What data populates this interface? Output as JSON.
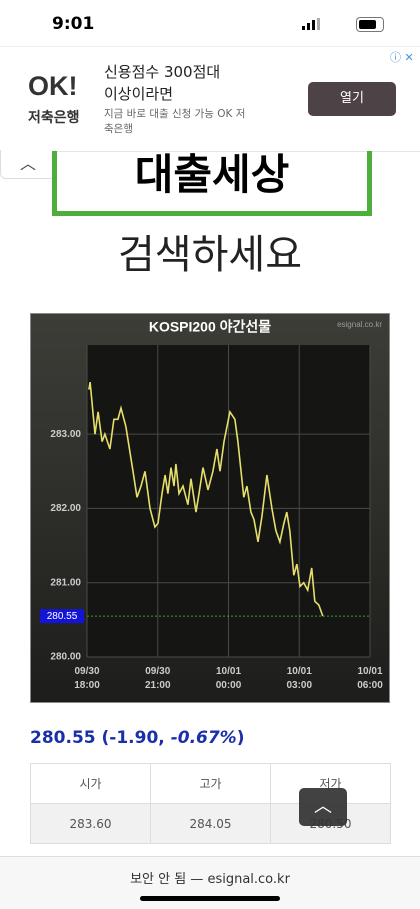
{
  "status_bar": {
    "time": "9:01"
  },
  "ad": {
    "logo": "OK!",
    "logo_sub": "저축은행",
    "title": "신용점수 300점대 이상이라면",
    "text": "지금 바로 대출 신청 가능 OK 저축은행",
    "button": "열기"
  },
  "banner": {
    "title": "대출세상",
    "subtitle": "검색하세요"
  },
  "chart_data": {
    "type": "line",
    "title": "KOSPI200 야간선물",
    "watermark": "esignal.co.kr",
    "color": "#e6df6a",
    "grid": true,
    "x": [
      0.08,
      0.13,
      0.34,
      0.47,
      0.64,
      0.76,
      0.97,
      1.14,
      1.31,
      1.44,
      1.65,
      1.95,
      2.12,
      2.29,
      2.46,
      2.67,
      2.88,
      3.01,
      3.18,
      3.31,
      3.43,
      3.56,
      3.69,
      3.77,
      3.9,
      4.07,
      4.28,
      4.41,
      4.62,
      4.75,
      4.92,
      5.13,
      5.34,
      5.51,
      5.64,
      5.81,
      6.06,
      6.27,
      6.4,
      6.65,
      6.78,
      6.95,
      7.08,
      7.25,
      7.42,
      7.63,
      7.84,
      8.01,
      8.18,
      8.35,
      8.47,
      8.6,
      8.77,
      8.9,
      9.03,
      9.19,
      9.36,
      9.53,
      9.66,
      9.83,
      10.0
    ],
    "values": [
      283.6,
      283.7,
      283.0,
      283.3,
      282.9,
      283.0,
      282.8,
      283.2,
      283.2,
      283.35,
      283.1,
      282.5,
      282.15,
      282.3,
      282.5,
      282.0,
      281.75,
      281.8,
      282.2,
      282.45,
      282.2,
      282.55,
      282.3,
      282.6,
      282.2,
      282.3,
      282.05,
      282.4,
      281.95,
      282.2,
      282.55,
      282.25,
      282.5,
      282.8,
      282.5,
      282.9,
      283.3,
      283.2,
      282.9,
      282.15,
      282.3,
      281.95,
      281.85,
      281.55,
      281.9,
      282.45,
      282.0,
      281.7,
      281.55,
      281.8,
      281.95,
      281.7,
      281.1,
      281.25,
      280.95,
      281.0,
      280.9,
      281.2,
      280.75,
      280.7,
      280.55
    ],
    "last": 280.55,
    "xlim": [
      0,
      12
    ],
    "xticks": [
      {
        "value": 0,
        "label": "09/30\n18:00"
      },
      {
        "value": 3,
        "label": "09/30\n21:00"
      },
      {
        "value": 6,
        "label": "10/01\n00:00"
      },
      {
        "value": 9,
        "label": "10/01\n03:00"
      },
      {
        "value": 12,
        "label": "10/01\n06:00"
      }
    ],
    "ylim": [
      280,
      284.2
    ],
    "yticks": [
      {
        "value": 280,
        "label": "280.00"
      },
      {
        "value": 281,
        "label": "281.00"
      },
      {
        "value": 282,
        "label": "282.00"
      },
      {
        "value": 283,
        "label": "283.00"
      }
    ]
  },
  "quote": {
    "price": "280.55",
    "change": "(-1.90,",
    "percent": "-0.67%",
    "close": ")"
  },
  "table": {
    "headers": [
      "시가",
      "고가",
      "저가"
    ],
    "rows": [
      [
        "283.60",
        "284.05",
        "280.50"
      ]
    ]
  },
  "browser_bar": {
    "url": "보안 안 됨 — esignal.co.kr"
  }
}
